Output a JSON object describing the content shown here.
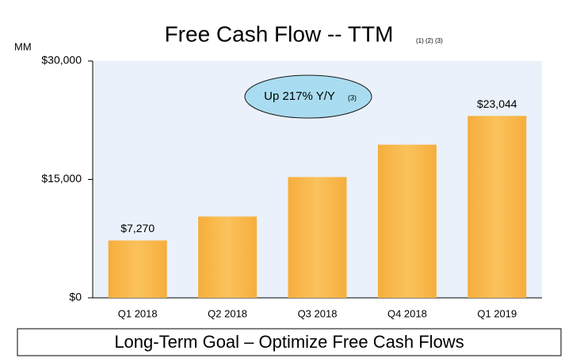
{
  "chart_data": {
    "type": "bar",
    "title": "Free Cash Flow -- TTM",
    "title_footnotes": "(1) (2) (3)",
    "y_unit_label": "MM",
    "categories": [
      "Q1 2018",
      "Q2 2018",
      "Q3 2018",
      "Q4 2018",
      "Q1 2019"
    ],
    "values": [
      7270,
      10300,
      15300,
      19400,
      23044
    ],
    "value_labels": [
      "$7,270",
      null,
      null,
      null,
      "$23,044"
    ],
    "color": "#f8b748",
    "ylim": [
      0,
      30000
    ],
    "yticks": [
      {
        "value": 0,
        "label": "$0"
      },
      {
        "value": 15000,
        "label": "$15,000"
      },
      {
        "value": 30000,
        "label": "$30,000"
      }
    ],
    "grid": false,
    "callout": {
      "text": "Up 217% Y/Y",
      "footnote": "(3)"
    },
    "footer": "Long-Term Goal – Optimize Free Cash Flows"
  }
}
